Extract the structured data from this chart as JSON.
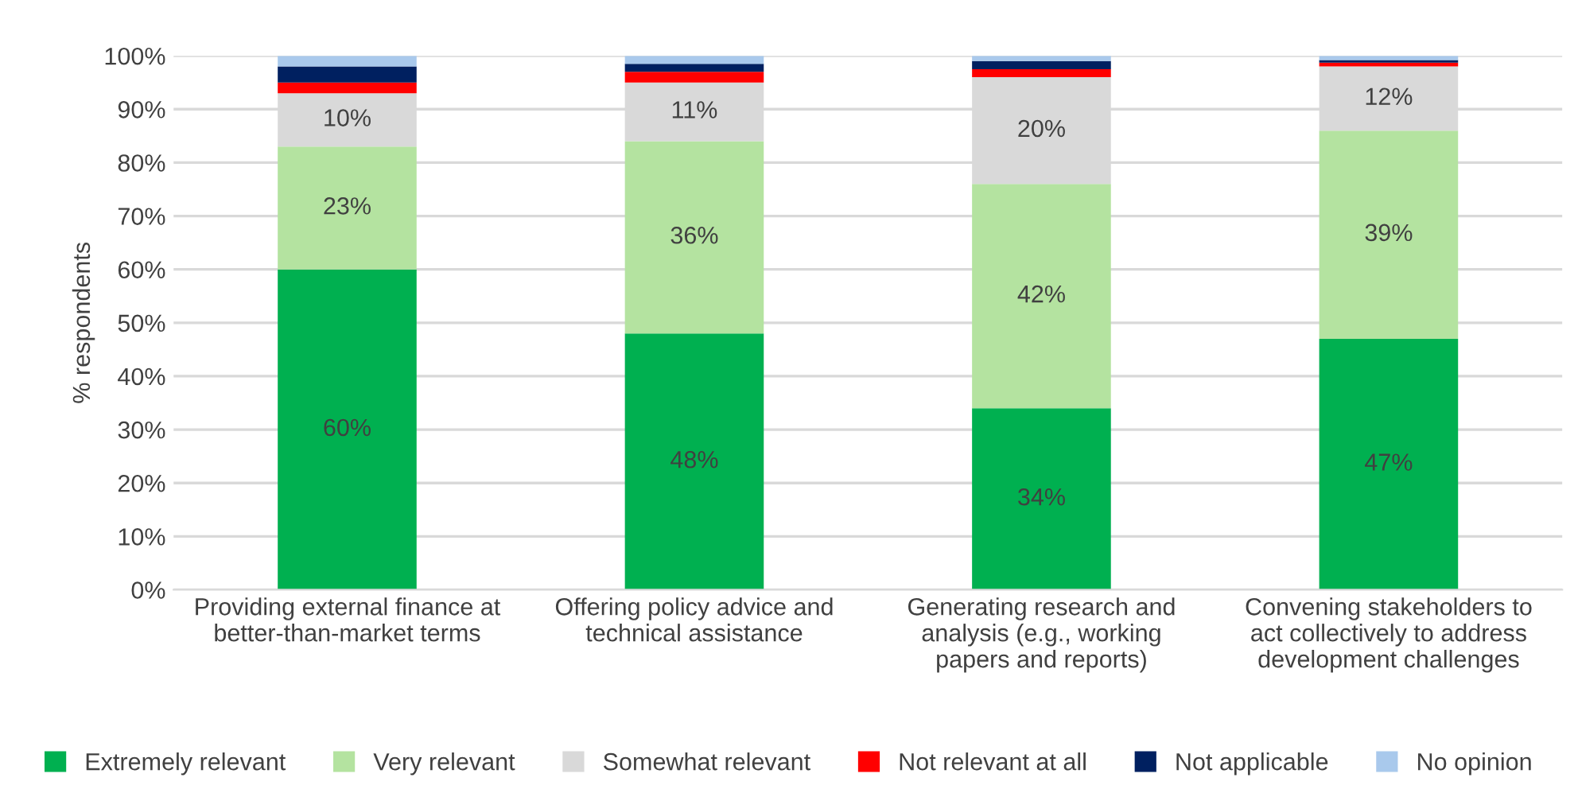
{
  "chart_data": {
    "type": "bar",
    "stacked": true,
    "ylabel": "% respondents",
    "categories": [
      "Providing external finance at\nbetter-than-market terms",
      "Offering policy advice and\ntechnical assistance",
      "Generating research and\nanalysis (e.g., working\npapers and reports)",
      "Convening stakeholders to\nact collectively to address\ndevelopment challenges"
    ],
    "series": [
      {
        "name": "Extremely relevant",
        "color": "#00b050",
        "values": [
          60,
          48,
          34,
          47
        ],
        "value_labels": [
          "60%",
          "48%",
          "34%",
          "47%"
        ]
      },
      {
        "name": "Very relevant",
        "color": "#b4e3a0",
        "values": [
          23,
          36,
          42,
          39
        ],
        "value_labels": [
          "23%",
          "36%",
          "42%",
          "39%"
        ]
      },
      {
        "name": "Somewhat relevant",
        "color": "#d9d9d9",
        "values": [
          10,
          11,
          20,
          12
        ],
        "value_labels": [
          "10%",
          "11%",
          "20%",
          "12%"
        ]
      },
      {
        "name": "Not relevant at all",
        "color": "#ff0000",
        "values": [
          2,
          2,
          1.5,
          0.7
        ]
      },
      {
        "name": "Not applicable",
        "color": "#002060",
        "values": [
          3,
          1.5,
          1.5,
          0.5
        ]
      },
      {
        "name": "No opinion",
        "color": "#a9c9ec",
        "values": [
          2,
          1.5,
          1,
          0.8
        ]
      }
    ],
    "ylim": [
      0,
      100
    ],
    "yticks": [
      {
        "value": 0,
        "label": "0%"
      },
      {
        "value": 10,
        "label": "10%"
      },
      {
        "value": 20,
        "label": "20%"
      },
      {
        "value": 30,
        "label": "30%"
      },
      {
        "value": 40,
        "label": "40%"
      },
      {
        "value": 50,
        "label": "50%"
      },
      {
        "value": 60,
        "label": "60%"
      },
      {
        "value": 70,
        "label": "70%"
      },
      {
        "value": 80,
        "label": "80%"
      },
      {
        "value": 90,
        "label": "90%"
      },
      {
        "value": 100,
        "label": "100%"
      }
    ],
    "grid": "y",
    "legend": "bottom"
  }
}
